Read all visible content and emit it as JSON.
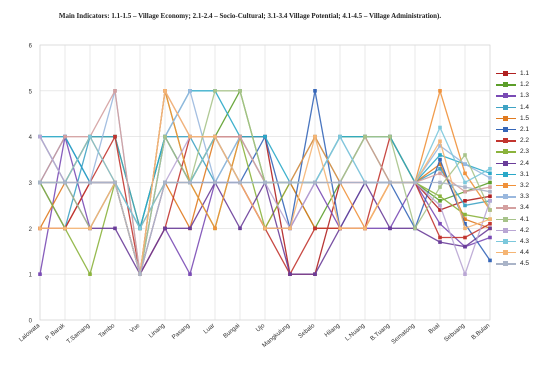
{
  "chart_data": {
    "type": "line",
    "title": "Main Indicators: 1.1-1.5 – Village Economy; 2.1-2.4 – Socio-Cultural; 3.1-3.4 Village Potential; 4.1-4.5 – Village Administration).",
    "xlabel": "",
    "ylabel": "",
    "ylim": [
      0,
      6
    ],
    "yticks": [
      "0",
      "1",
      "2",
      "3",
      "4",
      "5",
      "6"
    ],
    "grid": true,
    "legend_position": "right",
    "categories": [
      "Lalowata",
      "P. Barak",
      "T.Samang",
      "Tambo",
      "Vue",
      "Linang",
      "Pasang",
      "Luar",
      "Bungai",
      "Ujo",
      "Mangkulung",
      "Sebalo",
      "Hilang",
      "L.Nuang",
      "B.Tuang",
      "Sematong",
      "Bual",
      "Sebuang",
      "B.Bulan"
    ],
    "series": [
      {
        "name": "1.1",
        "color": "#b02020",
        "values": [
          3,
          2,
          3,
          3,
          1,
          3,
          3,
          4,
          4,
          4,
          1,
          1,
          3,
          3,
          3,
          3,
          2.4,
          2.6,
          2.7
        ]
      },
      {
        "name": "1.2",
        "color": "#5c9e2a",
        "values": [
          4,
          3,
          4,
          4,
          2,
          4,
          3,
          4,
          5,
          3,
          3,
          2,
          3,
          4,
          3,
          3,
          2.6,
          2.8,
          3.0
        ]
      },
      {
        "name": "1.3",
        "color": "#7a4bb5",
        "values": [
          1,
          4,
          2,
          3,
          1,
          2,
          1,
          3,
          3,
          2,
          2,
          3,
          2,
          2,
          2,
          3,
          2.1,
          1.6,
          1.8
        ]
      },
      {
        "name": "1.4",
        "color": "#3fa3c4",
        "values": [
          3,
          2,
          4,
          4,
          2,
          4,
          4,
          3,
          4,
          3,
          3,
          4,
          3,
          4,
          4,
          3,
          3.3,
          2.5,
          2.6
        ]
      },
      {
        "name": "1.5",
        "color": "#e07a1f",
        "values": [
          2,
          3,
          4,
          3,
          2,
          3,
          2,
          4,
          3,
          2,
          3,
          2,
          2,
          2,
          3,
          3,
          3.4,
          2.2,
          2.0
        ]
      },
      {
        "name": "2.1",
        "color": "#3566b8",
        "values": [
          3,
          4,
          3,
          3,
          1,
          4,
          3,
          3,
          3,
          4,
          2,
          5,
          2,
          3,
          3,
          2,
          3.5,
          2.1,
          1.3
        ]
      },
      {
        "name": "2.2",
        "color": "#c2352f",
        "values": [
          2,
          2,
          3,
          4,
          1,
          2,
          4,
          4,
          3,
          2,
          1,
          2,
          2,
          2,
          4,
          3,
          1.8,
          1.8,
          2.1
        ]
      },
      {
        "name": "2.3",
        "color": "#8bb33c",
        "values": [
          3,
          2,
          1,
          3,
          1,
          5,
          3,
          2,
          4,
          2,
          3,
          3,
          4,
          4,
          4,
          3,
          2.7,
          2.3,
          2.2
        ]
      },
      {
        "name": "2.4",
        "color": "#6a3d99",
        "values": [
          3,
          3,
          2,
          2,
          1,
          2,
          2,
          3,
          2,
          3,
          1,
          1,
          2,
          3,
          2,
          2,
          1.7,
          1.6,
          2.0
        ]
      },
      {
        "name": "3.1",
        "color": "#2aa8c8",
        "values": [
          4,
          4,
          3,
          3,
          2,
          4,
          5,
          5,
          4,
          4,
          3,
          3,
          4,
          4,
          4,
          3,
          3.6,
          3.4,
          3.2
        ]
      },
      {
        "name": "3.2",
        "color": "#f0913a",
        "values": [
          3,
          3,
          3,
          3,
          1,
          5,
          3,
          2,
          4,
          3,
          3,
          4,
          3,
          2,
          3,
          3,
          5.0,
          3.2,
          2.4
        ]
      },
      {
        "name": "3.3",
        "color": "#9ab8de",
        "values": [
          4,
          3,
          3,
          5,
          1,
          4,
          5,
          3,
          4,
          3,
          3,
          3,
          4,
          3,
          3,
          3,
          3.8,
          3.4,
          3.1
        ]
      },
      {
        "name": "3.4",
        "color": "#d4a0a0",
        "values": [
          3,
          4,
          4,
          5,
          1,
          5,
          4,
          4,
          4,
          3,
          3,
          3,
          3,
          4,
          3,
          3,
          3.2,
          2.8,
          2.9
        ]
      },
      {
        "name": "4.1",
        "color": "#a7c38a",
        "values": [
          3,
          3,
          2,
          3,
          1,
          4,
          3,
          5,
          5,
          3,
          3,
          3,
          3,
          4,
          4,
          2,
          2.9,
          3.6,
          2.4
        ]
      },
      {
        "name": "4.2",
        "color": "#b9a6d4",
        "values": [
          4,
          3,
          3,
          3,
          1,
          3,
          4,
          4,
          3,
          3,
          2,
          3,
          3,
          3,
          3,
          3,
          2.5,
          1.0,
          2.6
        ]
      },
      {
        "name": "4.3",
        "color": "#7cc8dc",
        "values": [
          3,
          3,
          4,
          3,
          2,
          3,
          3,
          4,
          3,
          3,
          3,
          3,
          4,
          3,
          3,
          3,
          4.2,
          3.0,
          3.3
        ]
      },
      {
        "name": "4.4",
        "color": "#f5b574",
        "values": [
          2,
          2,
          2,
          3,
          1,
          5,
          4,
          4,
          3,
          2,
          2,
          4,
          2,
          2,
          3,
          3,
          3.9,
          2.0,
          2.2
        ]
      },
      {
        "name": "4.5",
        "color": "#aab4c8",
        "values": [
          3,
          3,
          3,
          3,
          1,
          3,
          3,
          3,
          3,
          3,
          3,
          3,
          3,
          3,
          3,
          3,
          3.0,
          2.9,
          2.8
        ]
      }
    ]
  }
}
